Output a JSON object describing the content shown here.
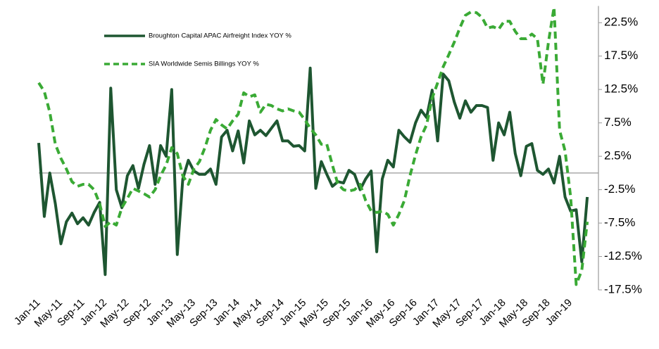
{
  "chart_data": {
    "type": "line",
    "categories": [
      "Jan-11",
      null,
      null,
      null,
      "May-11",
      null,
      null,
      null,
      "Sep-11",
      null,
      null,
      null,
      "Jan-12",
      null,
      null,
      null,
      "May-12",
      null,
      null,
      null,
      "Sep-12",
      null,
      null,
      null,
      "Jan-13",
      null,
      null,
      null,
      "May-13",
      null,
      null,
      null,
      "Sep-13",
      null,
      null,
      null,
      "Jan-14",
      null,
      null,
      null,
      "May-14",
      null,
      null,
      null,
      "Sep-14",
      null,
      null,
      null,
      "Jan-15",
      null,
      null,
      null,
      "May-15",
      null,
      null,
      null,
      "Sep-15",
      null,
      null,
      null,
      "Jan-16",
      null,
      null,
      null,
      "May-16",
      null,
      null,
      null,
      "Sep-16",
      null,
      null,
      null,
      "Jan-17",
      null,
      null,
      null,
      "May-17",
      null,
      null,
      null,
      "Sep-17",
      null,
      null,
      null,
      "Jan-18",
      null,
      null,
      null,
      "May-18",
      null,
      null,
      null,
      "Sep-18",
      null,
      null,
      null,
      "Jan-19",
      null,
      null,
      null
    ],
    "series": [
      {
        "name": "Broughton Capital APAC Airfreight Index YOY %",
        "color": "#1e5631",
        "dashed": false,
        "values": [
          4.5,
          -6.5,
          0,
          -4.6,
          -10.6,
          -7.3,
          -6,
          -7.6,
          -6.7,
          -7.8,
          -5.9,
          -4.4,
          -15.2,
          12.7,
          -2.5,
          -5.2,
          -0.4,
          1.1,
          -2.3,
          1.3,
          4.1,
          -1.7,
          4.1,
          2.5,
          12.5,
          -12.2,
          -0.9,
          1.9,
          0.3,
          -0.2,
          -0.2,
          0.6,
          -1.7,
          5.4,
          6.4,
          3.3,
          6.3,
          1.5,
          7.8,
          5.7,
          6.4,
          5.6,
          6.7,
          7.8,
          4.8,
          4.8,
          4,
          4.1,
          3.3,
          15.7,
          -2.3,
          1.7,
          -0.2,
          -2,
          -1.3,
          -1.5,
          0.4,
          -0.2,
          -2.5,
          -0.9,
          0.3,
          -11.8,
          -0.9,
          1.9,
          0.9,
          6.4,
          5.4,
          4.6,
          7.5,
          9.4,
          8.3,
          12.4,
          4.8,
          14.8,
          13.8,
          10.6,
          8.2,
          10.8,
          9.1,
          10.1,
          10.1,
          9.8,
          1.9,
          7.5,
          5.7,
          9.1,
          2.9,
          -0.4,
          4,
          4.4,
          0.4,
          -0.2,
          0.6,
          -1.5,
          2.5,
          -3.6,
          -5.7,
          -5.5,
          -13.3,
          -3.6
        ]
      },
      {
        "name": "SIA Worldwide Semis Billings YOY %",
        "color": "#3aaa35",
        "dashed": true,
        "values": [
          13.5,
          12.2,
          9.1,
          4.3,
          2.2,
          0.6,
          -1.3,
          -2,
          -1.7,
          -1.7,
          -2.5,
          -4.6,
          -8,
          -7.3,
          -7.8,
          -5.2,
          -3.8,
          -2.3,
          -2.7,
          -3.1,
          -3.6,
          -2.5,
          -0.4,
          1.2,
          3.8,
          2.9,
          -0.4,
          -1.7,
          0.6,
          1.7,
          3.8,
          6.4,
          8,
          7.2,
          6.6,
          7.8,
          8.8,
          12,
          11.4,
          11.7,
          9.1,
          10.3,
          10.1,
          9.6,
          9.3,
          9.6,
          9.3,
          9.1,
          8,
          6.7,
          5.7,
          4.3,
          4.3,
          1.2,
          -1.7,
          -2.5,
          -2.7,
          -2.5,
          -1.7,
          -4.1,
          -5.7,
          -5.9,
          -5.7,
          -6.2,
          -7.8,
          -6.2,
          -4.1,
          -0.4,
          2.7,
          5.4,
          7.2,
          11.2,
          13.5,
          15.9,
          17.7,
          19.6,
          21.7,
          23.6,
          24.1,
          24,
          23.3,
          21.7,
          21.9,
          21.5,
          22.7,
          22.7,
          21.2,
          20.1,
          20.1,
          20.8,
          20.1,
          13.3,
          19.6,
          24.8,
          6.4,
          3.3,
          -3.6,
          -16.7,
          -14.6,
          -7.3
        ]
      }
    ],
    "ylim": [
      -17.5,
      25
    ],
    "yticks": [
      {
        "value": -17.5,
        "label": "-17.5%"
      },
      {
        "value": -12.5,
        "label": "-12.5%"
      },
      {
        "value": -7.5,
        "label": "-7.5%"
      },
      {
        "value": -2.5,
        "label": "-2.5%"
      },
      {
        "value": 2.5,
        "label": "2.5%"
      },
      {
        "value": 7.5,
        "label": "7.5%"
      },
      {
        "value": 12.5,
        "label": "12.5%"
      },
      {
        "value": 17.5,
        "label": "17.5%"
      },
      {
        "value": 22.5,
        "label": "22.5%"
      }
    ],
    "y_axis_side": "right",
    "legend": "upper left",
    "grid": false
  }
}
